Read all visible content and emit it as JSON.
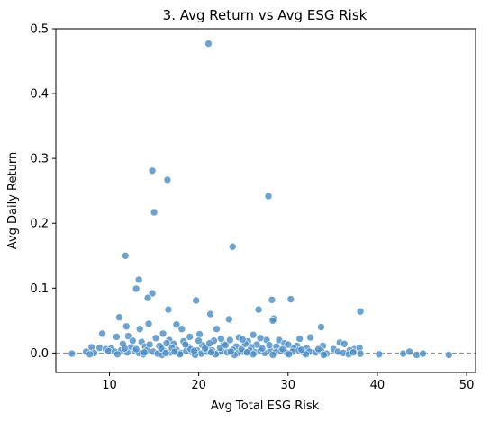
{
  "chart_data": {
    "type": "scatter",
    "title": "3. Avg Return vs Avg ESG Risk",
    "xlabel": "Avg Total ESG Risk",
    "ylabel": "Avg Daily Return",
    "xlim": [
      4,
      51
    ],
    "ylim": [
      -0.03,
      0.5
    ],
    "xticks": [
      10,
      20,
      30,
      40,
      50
    ],
    "yticks": [
      0.0,
      0.1,
      0.2,
      0.3,
      0.4,
      0.5
    ],
    "ytick_labels": [
      "0.0",
      "0.1",
      "0.2",
      "0.3",
      "0.4",
      "0.5"
    ],
    "reference_line": {
      "y": 0,
      "style": "dashed",
      "color": "#808080"
    },
    "grid": false,
    "point_color": "#4a8cc4",
    "points": [
      [
        21.1,
        0.477
      ],
      [
        14.8,
        0.281
      ],
      [
        16.5,
        0.267
      ],
      [
        15.0,
        0.217
      ],
      [
        27.8,
        0.242
      ],
      [
        23.8,
        0.164
      ],
      [
        11.8,
        0.15
      ],
      [
        13.3,
        0.113
      ],
      [
        13.0,
        0.099
      ],
      [
        14.8,
        0.092
      ],
      [
        14.3,
        0.085
      ],
      [
        19.7,
        0.081
      ],
      [
        28.2,
        0.082
      ],
      [
        30.3,
        0.083
      ],
      [
        16.6,
        0.067
      ],
      [
        26.7,
        0.067
      ],
      [
        38.1,
        0.064
      ],
      [
        21.3,
        0.06
      ],
      [
        11.1,
        0.055
      ],
      [
        23.4,
        0.052
      ],
      [
        28.4,
        0.053
      ],
      [
        28.3,
        0.05
      ],
      [
        17.5,
        0.044
      ],
      [
        14.4,
        0.045
      ],
      [
        11.9,
        0.041
      ],
      [
        33.7,
        0.04
      ],
      [
        13.4,
        0.037
      ],
      [
        18.1,
        0.037
      ],
      [
        22.0,
        0.037
      ],
      [
        9.2,
        0.03
      ],
      [
        20.1,
        0.029
      ],
      [
        16.0,
        0.03
      ],
      [
        26.1,
        0.028
      ],
      [
        12.1,
        0.026
      ],
      [
        10.8,
        0.025
      ],
      [
        15.2,
        0.023
      ],
      [
        19.0,
        0.025
      ],
      [
        24.5,
        0.024
      ],
      [
        29.0,
        0.02
      ],
      [
        31.3,
        0.022
      ],
      [
        32.5,
        0.024
      ],
      [
        35.8,
        0.016
      ],
      [
        36.3,
        0.014
      ],
      [
        16.7,
        0.02
      ],
      [
        18.3,
        0.018
      ],
      [
        21.7,
        0.019
      ],
      [
        23.5,
        0.02
      ],
      [
        25.5,
        0.018
      ],
      [
        27.6,
        0.02
      ],
      [
        13.6,
        0.017
      ],
      [
        11.5,
        0.014
      ],
      [
        17.2,
        0.014
      ],
      [
        20.4,
        0.012
      ],
      [
        22.8,
        0.014
      ],
      [
        26.5,
        0.013
      ],
      [
        29.6,
        0.015
      ],
      [
        31.0,
        0.011
      ],
      [
        33.9,
        0.011
      ],
      [
        37.4,
        0.006
      ],
      [
        38.0,
        0.008
      ],
      [
        8.0,
        0.009
      ],
      [
        8.9,
        0.008
      ],
      [
        9.6,
        0.006
      ],
      [
        10.2,
        0.007
      ],
      [
        12.4,
        0.009
      ],
      [
        14.0,
        0.01
      ],
      [
        15.6,
        0.011
      ],
      [
        18.8,
        0.01
      ],
      [
        21.0,
        0.009
      ],
      [
        24.2,
        0.01
      ],
      [
        25.9,
        0.009
      ],
      [
        28.7,
        0.01
      ],
      [
        30.6,
        0.008
      ],
      [
        32.1,
        0.007
      ],
      [
        35.1,
        0.006
      ],
      [
        36.9,
        0.004
      ],
      [
        7.4,
        0.002
      ],
      [
        8.3,
        0.0
      ],
      [
        9.9,
        0.003
      ],
      [
        10.6,
        0.002
      ],
      [
        11.3,
        0.004
      ],
      [
        12.0,
        0.001
      ],
      [
        12.8,
        0.003
      ],
      [
        13.3,
        0.0
      ],
      [
        14.2,
        0.004
      ],
      [
        14.9,
        0.002
      ],
      [
        15.4,
        -0.001
      ],
      [
        16.1,
        0.003
      ],
      [
        16.8,
        0.001
      ],
      [
        17.5,
        0.005
      ],
      [
        18.0,
        0.0
      ],
      [
        18.6,
        0.003
      ],
      [
        19.3,
        0.001
      ],
      [
        19.8,
        0.004
      ],
      [
        20.3,
        -0.001
      ],
      [
        20.9,
        0.002
      ],
      [
        21.5,
        0.004
      ],
      [
        22.1,
        0.0
      ],
      [
        22.6,
        0.003
      ],
      [
        23.2,
        0.001
      ],
      [
        23.8,
        0.005
      ],
      [
        24.4,
        0.0
      ],
      [
        25.0,
        0.002
      ],
      [
        25.7,
        0.004
      ],
      [
        26.3,
        0.001
      ],
      [
        26.9,
        0.003
      ],
      [
        27.4,
        0.0
      ],
      [
        28.0,
        0.004
      ],
      [
        28.6,
        0.001
      ],
      [
        29.2,
        0.003
      ],
      [
        29.9,
        0.0
      ],
      [
        30.5,
        0.002
      ],
      [
        31.2,
        0.004
      ],
      [
        31.8,
        0.0
      ],
      [
        32.4,
        0.002
      ],
      [
        33.1,
        0.001
      ],
      [
        33.7,
        0.003
      ],
      [
        34.3,
        -0.001
      ],
      [
        35.6,
        0.002
      ],
      [
        36.2,
        0.0
      ],
      [
        36.8,
        -0.002
      ],
      [
        37.3,
        0.001
      ],
      [
        38.1,
        -0.001
      ],
      [
        40.2,
        -0.002
      ],
      [
        42.9,
        -0.001
      ],
      [
        43.6,
        0.002
      ],
      [
        44.4,
        -0.003
      ],
      [
        45.1,
        -0.001
      ],
      [
        48.0,
        -0.003
      ],
      [
        5.8,
        -0.001
      ],
      [
        7.8,
        -0.002
      ],
      [
        10.9,
        -0.002
      ],
      [
        13.8,
        -0.002
      ],
      [
        15.9,
        -0.003
      ],
      [
        17.9,
        -0.002
      ],
      [
        19.6,
        -0.003
      ],
      [
        21.9,
        -0.002
      ],
      [
        24.0,
        -0.003
      ],
      [
        26.1,
        -0.002
      ],
      [
        28.3,
        -0.003
      ],
      [
        30.1,
        -0.002
      ],
      [
        32.0,
        -0.002
      ],
      [
        34.0,
        -0.003
      ],
      [
        11.7,
        0.007
      ],
      [
        13.0,
        0.006
      ],
      [
        15.8,
        0.007
      ],
      [
        17.0,
        0.008
      ],
      [
        19.1,
        0.006
      ],
      [
        20.7,
        0.007
      ],
      [
        22.4,
        0.008
      ],
      [
        24.8,
        0.006
      ],
      [
        27.1,
        0.007
      ],
      [
        29.4,
        0.006
      ],
      [
        31.5,
        0.005
      ],
      [
        33.4,
        0.006
      ],
      [
        14.5,
        0.013
      ],
      [
        16.4,
        0.015
      ],
      [
        18.5,
        0.013
      ],
      [
        21.2,
        0.015
      ],
      [
        23.0,
        0.012
      ],
      [
        25.2,
        0.014
      ],
      [
        27.9,
        0.012
      ],
      [
        30.0,
        0.013
      ],
      [
        12.6,
        0.019
      ],
      [
        20.0,
        0.019
      ],
      [
        22.5,
        0.022
      ],
      [
        24.9,
        0.021
      ],
      [
        26.9,
        0.023
      ],
      [
        19.5,
        0.003
      ],
      [
        17.3,
        0.002
      ],
      [
        23.6,
        0.002
      ],
      [
        25.4,
        0.001
      ],
      [
        13.9,
        0.001
      ],
      [
        16.3,
        0.0
      ],
      [
        21.4,
        0.001
      ]
    ]
  }
}
